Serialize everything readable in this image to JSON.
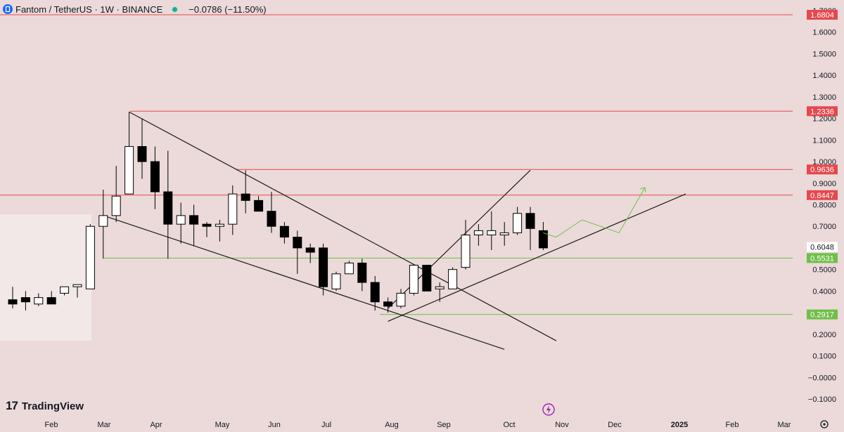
{
  "header": {
    "symbol": "Fantom / TetherUS · 1W · BINANCE",
    "change": "−0.0786 (−11.50%)"
  },
  "brand": {
    "name": "TradingView"
  },
  "colors": {
    "background": "#ebdad9",
    "red_level": "#e5484d",
    "green_level": "#6fbf4a",
    "candle_up": "#ffffff",
    "candle_down": "#000000",
    "price_tag": "#ffffff"
  },
  "icons": {
    "logo": "fantom-logo-icon",
    "lightning": "lightning-icon",
    "settings": "gear-icon"
  },
  "chart_data": {
    "type": "candlestick",
    "title": "Fantom / TetherUS · 1W · BINANCE",
    "y_ticks": [
      "1.7000",
      "1.6000",
      "1.5000",
      "1.4000",
      "1.3000",
      "1.2000",
      "1.1000",
      "1.0000",
      "0.9000",
      "0.8000",
      "0.7000",
      "0.6000",
      "0.5000",
      "0.4000",
      "0.3000",
      "0.2000",
      "0.1000",
      "−0.0000",
      "−0.1000"
    ],
    "x_ticks": [
      "Feb",
      "Mar",
      "Apr",
      "May",
      "Jun",
      "Jul",
      "Aug",
      "Sep",
      "Oct",
      "Nov",
      "Dec",
      "2025",
      "Feb",
      "Mar"
    ],
    "ylim": [
      -0.13,
      1.72
    ],
    "current_price": "0.6048",
    "levels": [
      {
        "value": 1.6804,
        "label": "1.6804",
        "color": "red"
      },
      {
        "value": 1.2336,
        "label": "1.2336",
        "color": "red"
      },
      {
        "value": 0.9636,
        "label": "0.9636",
        "color": "red"
      },
      {
        "value": 0.8447,
        "label": "0.8447",
        "color": "red"
      },
      {
        "value": 0.5531,
        "label": "0.5531",
        "color": "green"
      },
      {
        "value": 0.2917,
        "label": "0.2917",
        "color": "green"
      }
    ],
    "candles": [
      {
        "date": "2024-01-22",
        "o": 0.36,
        "h": 0.42,
        "l": 0.32,
        "c": 0.34
      },
      {
        "date": "2024-01-29",
        "o": 0.37,
        "h": 0.4,
        "l": 0.31,
        "c": 0.35
      },
      {
        "date": "2024-02-05",
        "o": 0.34,
        "h": 0.39,
        "l": 0.33,
        "c": 0.37
      },
      {
        "date": "2024-02-12",
        "o": 0.37,
        "h": 0.4,
        "l": 0.34,
        "c": 0.34
      },
      {
        "date": "2024-02-19",
        "o": 0.39,
        "h": 0.42,
        "l": 0.38,
        "c": 0.42
      },
      {
        "date": "2024-02-26",
        "o": 0.42,
        "h": 0.43,
        "l": 0.37,
        "c": 0.43
      },
      {
        "date": "2024-03-04",
        "o": 0.41,
        "h": 0.71,
        "l": 0.41,
        "c": 0.7
      },
      {
        "date": "2024-03-11",
        "o": 0.7,
        "h": 0.87,
        "l": 0.55,
        "c": 0.75
      },
      {
        "date": "2024-03-18",
        "o": 0.75,
        "h": 0.98,
        "l": 0.72,
        "c": 0.84
      },
      {
        "date": "2024-03-25",
        "o": 0.85,
        "h": 1.23,
        "l": 0.85,
        "c": 1.07
      },
      {
        "date": "2024-04-01",
        "o": 1.07,
        "h": 1.2,
        "l": 0.92,
        "c": 1.0
      },
      {
        "date": "2024-04-08",
        "o": 1.0,
        "h": 1.07,
        "l": 0.78,
        "c": 0.86
      },
      {
        "date": "2024-04-15",
        "o": 0.86,
        "h": 1.05,
        "l": 0.55,
        "c": 0.71
      },
      {
        "date": "2024-04-22",
        "o": 0.71,
        "h": 0.81,
        "l": 0.62,
        "c": 0.75
      },
      {
        "date": "2024-04-29",
        "o": 0.75,
        "h": 0.8,
        "l": 0.61,
        "c": 0.71
      },
      {
        "date": "2024-05-06",
        "o": 0.71,
        "h": 0.72,
        "l": 0.65,
        "c": 0.7
      },
      {
        "date": "2024-05-13",
        "o": 0.7,
        "h": 0.73,
        "l": 0.63,
        "c": 0.71
      },
      {
        "date": "2024-05-20",
        "o": 0.71,
        "h": 0.89,
        "l": 0.66,
        "c": 0.85
      },
      {
        "date": "2024-05-27",
        "o": 0.85,
        "h": 0.96,
        "l": 0.76,
        "c": 0.82
      },
      {
        "date": "2024-06-03",
        "o": 0.82,
        "h": 0.84,
        "l": 0.77,
        "c": 0.77
      },
      {
        "date": "2024-06-10",
        "o": 0.77,
        "h": 0.86,
        "l": 0.67,
        "c": 0.7
      },
      {
        "date": "2024-06-17",
        "o": 0.7,
        "h": 0.72,
        "l": 0.62,
        "c": 0.65
      },
      {
        "date": "2024-06-24",
        "o": 0.65,
        "h": 0.68,
        "l": 0.48,
        "c": 0.6
      },
      {
        "date": "2024-07-01",
        "o": 0.6,
        "h": 0.62,
        "l": 0.53,
        "c": 0.58
      },
      {
        "date": "2024-07-08",
        "o": 0.6,
        "h": 0.62,
        "l": 0.38,
        "c": 0.42
      },
      {
        "date": "2024-07-15",
        "o": 0.41,
        "h": 0.49,
        "l": 0.4,
        "c": 0.48
      },
      {
        "date": "2024-07-22",
        "o": 0.48,
        "h": 0.54,
        "l": 0.48,
        "c": 0.53
      },
      {
        "date": "2024-07-29",
        "o": 0.53,
        "h": 0.55,
        "l": 0.4,
        "c": 0.44
      },
      {
        "date": "2024-08-05",
        "o": 0.44,
        "h": 0.47,
        "l": 0.31,
        "c": 0.35
      },
      {
        "date": "2024-08-12",
        "o": 0.35,
        "h": 0.37,
        "l": 0.3,
        "c": 0.33
      },
      {
        "date": "2024-08-19",
        "o": 0.33,
        "h": 0.41,
        "l": 0.32,
        "c": 0.39
      },
      {
        "date": "2024-08-26",
        "o": 0.39,
        "h": 0.52,
        "l": 0.38,
        "c": 0.52
      },
      {
        "date": "2024-09-02",
        "o": 0.52,
        "h": 0.52,
        "l": 0.4,
        "c": 0.4
      },
      {
        "date": "2024-09-09",
        "o": 0.41,
        "h": 0.44,
        "l": 0.35,
        "c": 0.42
      },
      {
        "date": "2024-09-16",
        "o": 0.41,
        "h": 0.51,
        "l": 0.41,
        "c": 0.5
      },
      {
        "date": "2024-09-23",
        "o": 0.51,
        "h": 0.73,
        "l": 0.5,
        "c": 0.66
      },
      {
        "date": "2024-09-30",
        "o": 0.66,
        "h": 0.71,
        "l": 0.61,
        "c": 0.68
      },
      {
        "date": "2024-10-07",
        "o": 0.66,
        "h": 0.77,
        "l": 0.59,
        "c": 0.68
      },
      {
        "date": "2024-10-14",
        "o": 0.66,
        "h": 0.72,
        "l": 0.61,
        "c": 0.67
      },
      {
        "date": "2024-10-21",
        "o": 0.67,
        "h": 0.79,
        "l": 0.66,
        "c": 0.76
      },
      {
        "date": "2024-10-28",
        "o": 0.76,
        "h": 0.79,
        "l": 0.59,
        "c": 0.69
      },
      {
        "date": "2024-11-04",
        "o": 0.68,
        "h": 0.72,
        "l": 0.59,
        "c": 0.6
      }
    ],
    "trendlines": [
      {
        "from": {
          "date": "2024-03-25",
          "value": 1.23
        },
        "to": {
          "date": "2024-11-11",
          "value": 0.17
        }
      },
      {
        "from": {
          "date": "2024-03-11",
          "value": 0.75
        },
        "to": {
          "date": "2024-10-14",
          "value": 0.13
        }
      },
      {
        "from": {
          "date": "2024-08-12",
          "value": 0.26
        },
        "to": {
          "date": "2025-01-20",
          "value": 0.85
        }
      },
      {
        "from": {
          "date": "2024-08-12",
          "value": 0.32
        },
        "to": {
          "date": "2024-10-28",
          "value": 0.96
        }
      }
    ],
    "projection": [
      {
        "date": "2024-11-04",
        "value": 0.67
      },
      {
        "date": "2024-11-11",
        "value": 0.65
      },
      {
        "date": "2024-11-25",
        "value": 0.73
      },
      {
        "date": "2024-12-15",
        "value": 0.67
      },
      {
        "date": "2024-12-29",
        "value": 0.88
      }
    ]
  }
}
